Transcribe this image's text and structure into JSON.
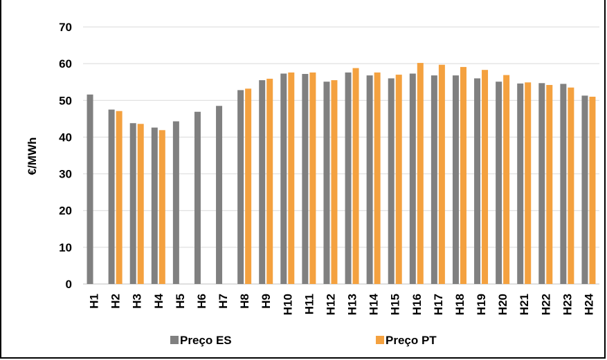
{
  "chart_data": {
    "type": "bar",
    "title": "",
    "xlabel": "",
    "ylabel": "€/MWh",
    "ylim": [
      0,
      70
    ],
    "yticks": [
      0,
      10,
      20,
      30,
      40,
      50,
      60,
      70
    ],
    "grid": true,
    "legend_position": "bottom",
    "categories": [
      "H1",
      "H2",
      "H3",
      "H4",
      "H5",
      "H6",
      "H7",
      "H8",
      "H9",
      "H10",
      "H11",
      "H12",
      "H13",
      "H14",
      "H15",
      "H16",
      "H17",
      "H18",
      "H19",
      "H20",
      "H21",
      "H22",
      "H23",
      "H24"
    ],
    "series": [
      {
        "name": "Preço ES",
        "color": "#808080",
        "values": [
          51.6,
          47.5,
          43.8,
          42.6,
          44.3,
          46.9,
          48.5,
          52.8,
          55.5,
          57.3,
          57.2,
          55.1,
          57.6,
          56.8,
          56.0,
          57.3,
          56.8,
          56.8,
          56.0,
          55.1,
          54.6,
          54.7,
          54.5,
          51.3
        ]
      },
      {
        "name": "Preço PT",
        "color": "#F4A13F",
        "values": [
          null,
          47.1,
          43.6,
          41.9,
          null,
          null,
          null,
          53.2,
          55.9,
          57.6,
          57.6,
          55.5,
          58.8,
          57.6,
          57.0,
          60.2,
          59.7,
          59.1,
          58.3,
          56.9,
          54.9,
          54.2,
          53.5,
          51.0
        ]
      }
    ]
  }
}
